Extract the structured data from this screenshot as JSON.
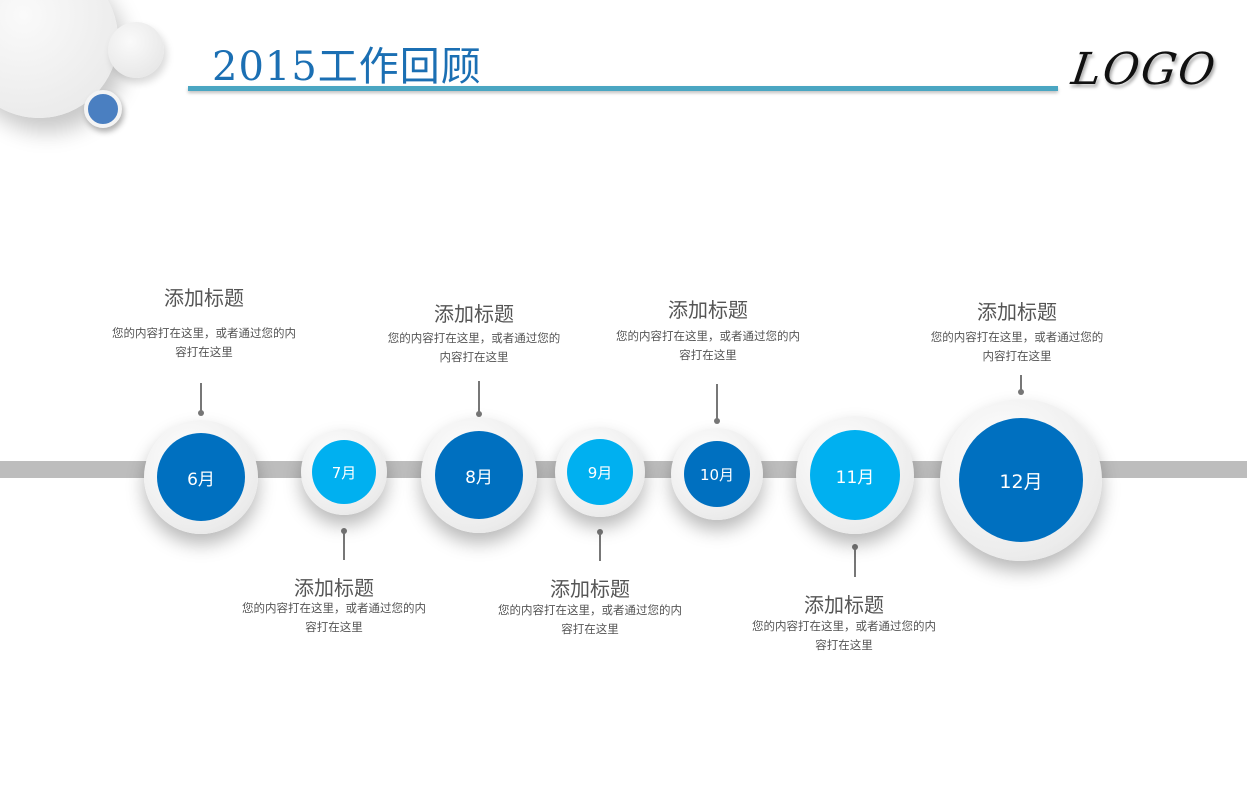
{
  "header": {
    "title": "2015工作回顾",
    "logo": "LOGO"
  },
  "colors": {
    "dark_blue": "#0070c0",
    "light_blue": "#00b0f0",
    "bar": "#bdbdbd",
    "rule": "#4aa6c2"
  },
  "timeline": [
    {
      "month": "6月",
      "color": "#0070c0",
      "position": "top",
      "title": "添加标题",
      "desc": [
        "您的内容打在这里，或者通过您的内",
        "容打在这里"
      ]
    },
    {
      "month": "7月",
      "color": "#00b0f0",
      "position": "bottom",
      "title": "添加标题",
      "desc": [
        "您的内容打在这里，或者通过您的内",
        "容打在这里"
      ]
    },
    {
      "month": "8月",
      "color": "#0070c0",
      "position": "top",
      "title": "添加标题",
      "desc": [
        "您的内容打在这里，或者通过您的",
        "内容打在这里"
      ]
    },
    {
      "month": "9月",
      "color": "#00b0f0",
      "position": "bottom",
      "title": "添加标题",
      "desc": [
        "您的内容打在这里，或者通过您的内",
        "容打在这里"
      ]
    },
    {
      "month": "10月",
      "color": "#0070c0",
      "position": "top",
      "title": "添加标题",
      "desc": [
        "您的内容打在这里，或者通过您的内",
        "容打在这里"
      ]
    },
    {
      "month": "11月",
      "color": "#00b0f0",
      "position": "bottom",
      "title": "添加标题",
      "desc": [
        "您的内容打在这里，或者通过您的内",
        "容打在这里"
      ]
    },
    {
      "month": "12月",
      "color": "#0070c0",
      "position": "top",
      "title": "添加标题",
      "desc": [
        "您的内容打在这里，或者通过您的",
        "内容打在这里"
      ]
    }
  ]
}
